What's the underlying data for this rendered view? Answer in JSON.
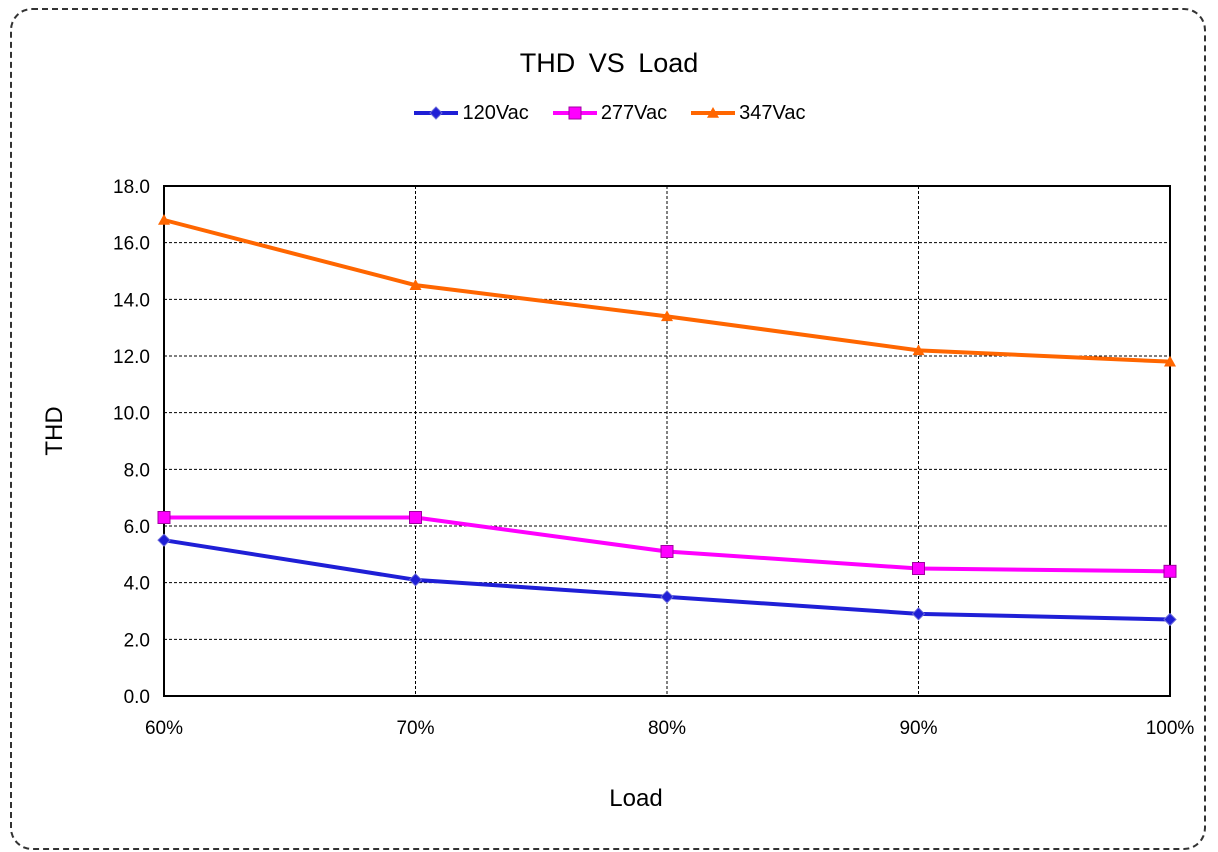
{
  "chart_data": {
    "type": "line",
    "title": "THD VS Load",
    "xlabel": "Load",
    "ylabel": "THD",
    "categories": [
      "60%",
      "70%",
      "80%",
      "90%",
      "100%"
    ],
    "ylim": [
      0,
      18
    ],
    "yticks": [
      "0.0",
      "2.0",
      "4.0",
      "6.0",
      "8.0",
      "10.0",
      "12.0",
      "14.0",
      "16.0",
      "18.0"
    ],
    "grid": true,
    "legend_position": "top",
    "series": [
      {
        "name": "120Vac",
        "values": [
          5.5,
          4.1,
          3.5,
          2.9,
          2.7
        ],
        "color": "#1f1fd6",
        "marker": "diamond"
      },
      {
        "name": "277Vac",
        "values": [
          6.3,
          6.3,
          5.1,
          4.5,
          4.4
        ],
        "color": "#ff00ff",
        "marker": "square"
      },
      {
        "name": "347Vac",
        "values": [
          16.8,
          14.5,
          13.4,
          12.2,
          11.8
        ],
        "color": "#ff6600",
        "marker": "triangle"
      }
    ]
  }
}
